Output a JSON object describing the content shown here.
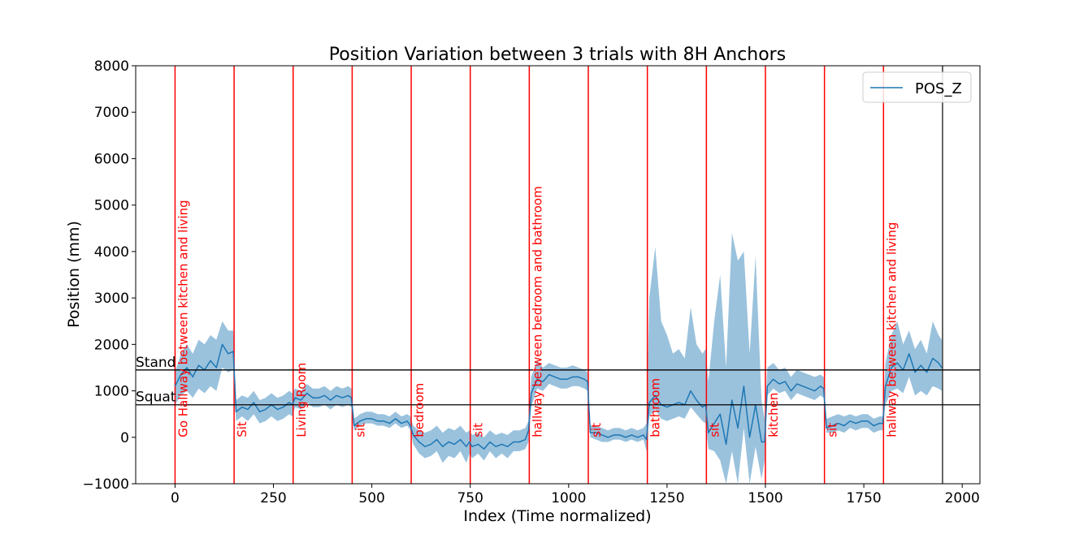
{
  "chart_data": {
    "type": "line",
    "title": "Position Variation between 3 trials with 8H Anchors",
    "xlabel": "Index (Time normalized)",
    "ylabel": "Position (mm)",
    "xlim": [
      -100,
      2045
    ],
    "ylim": [
      -1000,
      8000
    ],
    "xticks": [
      0,
      250,
      500,
      750,
      1000,
      1250,
      1500,
      1750,
      2000
    ],
    "yticks": [
      -1000,
      0,
      1000,
      2000,
      3000,
      4000,
      5000,
      6000,
      7000,
      8000
    ],
    "xtick_labels": [
      "0",
      "250",
      "500",
      "750",
      "1000",
      "1250",
      "1500",
      "1750",
      "2000"
    ],
    "ytick_labels": [
      "−1000",
      "0",
      "1000",
      "2000",
      "3000",
      "4000",
      "5000",
      "6000",
      "7000",
      "8000"
    ],
    "grid": false,
    "legend_position": "top-right",
    "colors": {
      "line": "#1f77b4",
      "band": "#1f77b4",
      "events": "#ff0000",
      "reference": "#000000"
    },
    "series": [
      {
        "name": "POS_Z",
        "x": [
          0,
          15,
          30,
          45,
          60,
          75,
          90,
          105,
          120,
          135,
          148,
          155,
          170,
          185,
          200,
          215,
          230,
          245,
          260,
          275,
          290,
          298,
          305,
          320,
          335,
          350,
          365,
          380,
          395,
          410,
          425,
          440,
          448,
          455,
          470,
          485,
          500,
          515,
          530,
          545,
          560,
          575,
          590,
          598,
          605,
          620,
          635,
          650,
          665,
          680,
          695,
          710,
          725,
          740,
          748,
          755,
          770,
          785,
          800,
          815,
          830,
          845,
          860,
          875,
          890,
          898,
          905,
          920,
          935,
          950,
          965,
          980,
          995,
          1010,
          1025,
          1040,
          1048,
          1055,
          1070,
          1085,
          1100,
          1115,
          1130,
          1145,
          1160,
          1175,
          1190,
          1198,
          1205,
          1220,
          1235,
          1250,
          1265,
          1280,
          1295,
          1310,
          1325,
          1340,
          1348,
          1355,
          1370,
          1385,
          1400,
          1415,
          1430,
          1445,
          1460,
          1475,
          1490,
          1498,
          1505,
          1520,
          1535,
          1550,
          1565,
          1580,
          1595,
          1610,
          1625,
          1640,
          1648,
          1655,
          1670,
          1685,
          1700,
          1715,
          1730,
          1745,
          1760,
          1775,
          1790,
          1798,
          1805,
          1820,
          1835,
          1850,
          1865,
          1880,
          1895,
          1910,
          1925,
          1940,
          1948
        ],
        "values": [
          1100,
          1350,
          1500,
          1300,
          1550,
          1450,
          1650,
          1500,
          2000,
          1800,
          1850,
          550,
          650,
          600,
          750,
          550,
          600,
          700,
          600,
          650,
          750,
          700,
          850,
          800,
          950,
          850,
          850,
          900,
          800,
          900,
          850,
          900,
          850,
          250,
          350,
          400,
          400,
          350,
          350,
          300,
          400,
          300,
          350,
          250,
          50,
          -100,
          -200,
          -150,
          -50,
          -200,
          -100,
          -150,
          -50,
          -200,
          -100,
          -200,
          -150,
          -250,
          -100,
          -200,
          -150,
          -200,
          -100,
          -100,
          -50,
          150,
          950,
          1250,
          1200,
          1350,
          1300,
          1250,
          1250,
          1300,
          1300,
          1250,
          1200,
          100,
          100,
          50,
          0,
          50,
          50,
          0,
          50,
          0,
          50,
          -50,
          750,
          900,
          700,
          650,
          700,
          750,
          700,
          1000,
          800,
          650,
          700,
          100,
          300,
          500,
          -150,
          800,
          200,
          1100,
          0,
          700,
          -100,
          -100,
          1100,
          1250,
          1150,
          1200,
          1000,
          1150,
          1100,
          1050,
          1000,
          1100,
          1050,
          200,
          250,
          300,
          250,
          350,
          300,
          350,
          350,
          250,
          300,
          300,
          1100,
          1500,
          1600,
          1450,
          1800,
          1400,
          1550,
          1400,
          1700,
          1600,
          1500
        ],
        "lower": [
          700,
          900,
          1000,
          850,
          1050,
          950,
          1100,
          1000,
          1500,
          1400,
          1450,
          350,
          450,
          350,
          500,
          300,
          350,
          450,
          350,
          400,
          500,
          450,
          650,
          600,
          750,
          650,
          650,
          700,
          600,
          700,
          650,
          700,
          650,
          150,
          250,
          300,
          300,
          250,
          250,
          200,
          300,
          200,
          250,
          150,
          -150,
          -350,
          -450,
          -400,
          -300,
          -550,
          -400,
          -450,
          -300,
          -550,
          -350,
          -450,
          -350,
          -500,
          -300,
          -450,
          -350,
          -450,
          -300,
          -300,
          -250,
          -100,
          650,
          1050,
          1000,
          1150,
          1100,
          1050,
          1050,
          1100,
          1100,
          1050,
          1000,
          0,
          -50,
          -100,
          -100,
          -50,
          -50,
          -100,
          -50,
          -100,
          -50,
          -300,
          450,
          600,
          400,
          350,
          400,
          450,
          400,
          650,
          500,
          350,
          300,
          -250,
          -300,
          -500,
          -1000,
          -300,
          -1000,
          200,
          -1000,
          -200,
          -900,
          -500,
          900,
          1050,
          950,
          1000,
          800,
          950,
          900,
          850,
          800,
          900,
          850,
          100,
          100,
          150,
          100,
          200,
          150,
          200,
          200,
          100,
          150,
          150,
          700,
          1000,
          1050,
          950,
          1300,
          900,
          1000,
          900,
          1100,
          1050,
          1000
        ],
        "upper": [
          1400,
          1800,
          2000,
          1800,
          2100,
          2000,
          2200,
          2100,
          2500,
          2300,
          2300,
          800,
          900,
          850,
          1000,
          800,
          850,
          950,
          850,
          900,
          1000,
          950,
          1050,
          1000,
          1150,
          1050,
          1050,
          1100,
          1000,
          1100,
          1050,
          1100,
          1050,
          400,
          500,
          550,
          550,
          500,
          500,
          450,
          550,
          450,
          500,
          450,
          250,
          150,
          100,
          150,
          250,
          100,
          200,
          150,
          250,
          100,
          150,
          50,
          100,
          0,
          150,
          50,
          100,
          50,
          150,
          150,
          200,
          350,
          1300,
          1650,
          1500,
          1600,
          1550,
          1500,
          1500,
          1550,
          1500,
          1450,
          1400,
          250,
          250,
          200,
          150,
          200,
          200,
          150,
          200,
          150,
          200,
          300,
          3000,
          4100,
          2500,
          2200,
          1800,
          1900,
          1700,
          2800,
          2000,
          1800,
          1900,
          1200,
          2500,
          3500,
          1500,
          4400,
          3800,
          4000,
          1800,
          3900,
          800,
          400,
          1500,
          1600,
          1450,
          1500,
          1300,
          1450,
          1400,
          1350,
          1300,
          1350,
          1300,
          400,
          450,
          500,
          450,
          500,
          450,
          500,
          500,
          400,
          450,
          450,
          1600,
          2200,
          2500,
          2000,
          2300,
          1900,
          2100,
          1800,
          2500,
          2200,
          2100
        ]
      }
    ],
    "event_lines": [
      0,
      150,
      300,
      450,
      600,
      750,
      900,
      1050,
      1200,
      1350,
      1500,
      1650,
      1800
    ],
    "end_line": 1950,
    "event_labels": [
      "Go Hallway between kitchen and living",
      "Sit",
      "Living Room",
      "sit",
      "bedroom",
      "sit",
      "hallway between bedroom and bathroom",
      "sit",
      "bathroom",
      "sit",
      "kitchen",
      "sit",
      "hallway between kitchen and living"
    ],
    "reference_lines": [
      {
        "label": "Stand",
        "y": 1450
      },
      {
        "label": "Squat",
        "y": 700
      }
    ],
    "legend": [
      "POS_Z"
    ]
  }
}
